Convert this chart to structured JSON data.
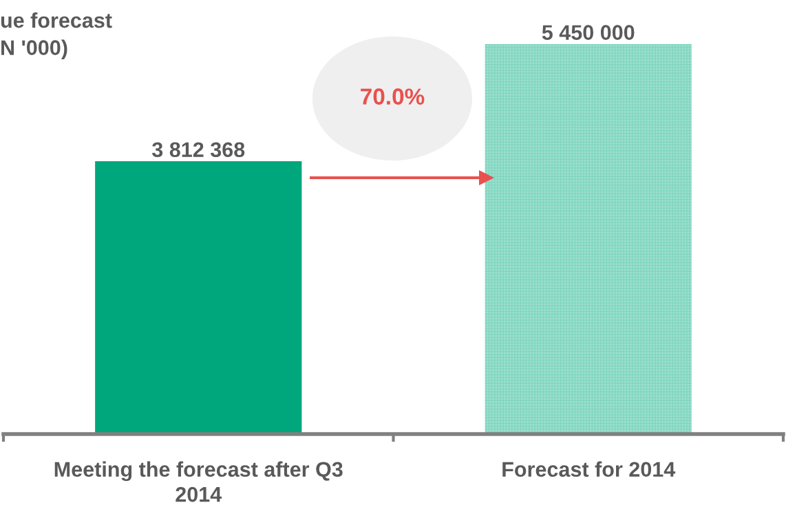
{
  "chart_data": {
    "type": "bar",
    "title": "ue forecast\nN '000)",
    "categories": [
      "Meeting the forecast after Q3\n2014",
      "Forecast for 2014"
    ],
    "values": [
      3812368,
      5450000
    ],
    "colors": [
      "#00a67c",
      "#9fe0cf"
    ],
    "value_labels": [
      "3 812 368",
      "5 450 000"
    ],
    "annotations": [
      "70.0%"
    ],
    "grid": false,
    "legend": false
  }
}
